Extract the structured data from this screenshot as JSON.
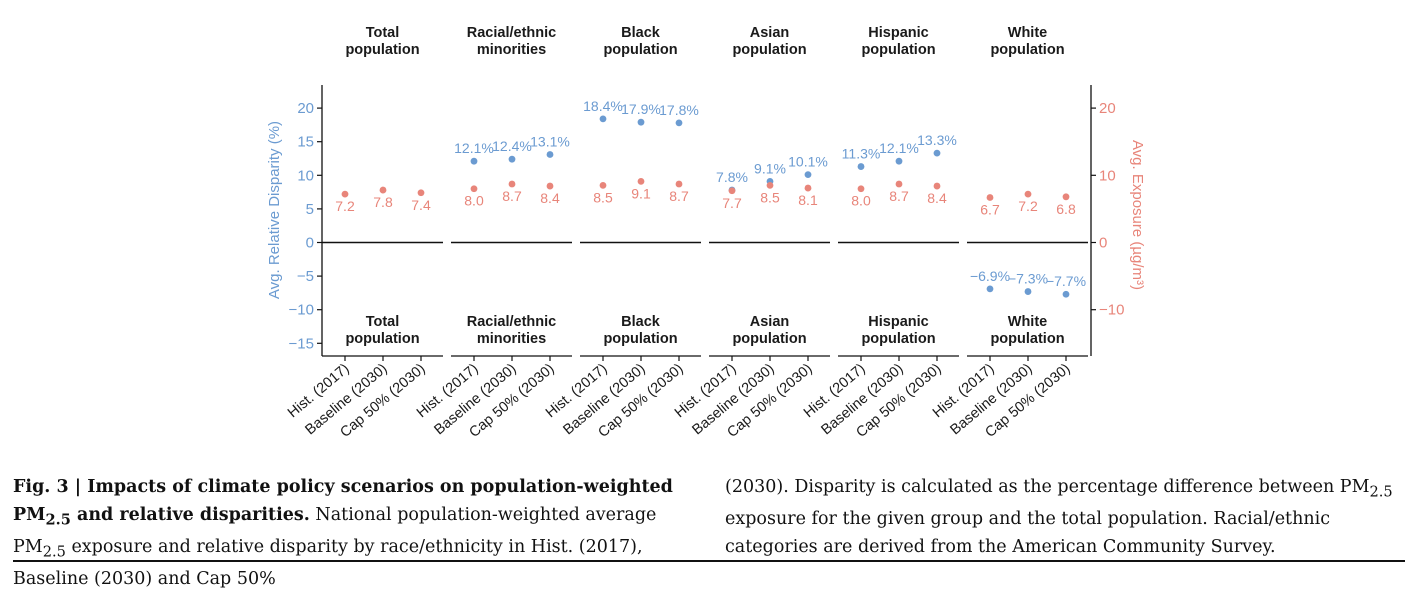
{
  "chart_data": {
    "type": "scatter",
    "panels": [
      "Total\npopulation",
      "Racial/ethnic\nminorities",
      "Black\npopulation",
      "Asian\npopulation",
      "Hispanic\npopulation",
      "White\npopulation"
    ],
    "categories": [
      "Hist. (2017)",
      "Baseline (2030)",
      "Cap 50% (2030)"
    ],
    "ylabel_left": "Avg. Relative Disparity (%)",
    "ylabel_right": "Avg. Exposure (µg/m³)",
    "yticks": [
      "20",
      "15",
      "10",
      "5",
      "0",
      "−5",
      "−10",
      "−15"
    ],
    "yticks_right": [
      "20",
      "10",
      "0",
      "−10"
    ],
    "ylim_left": [
      -17,
      23.5
    ],
    "ylim_right": [
      -17,
      23.5
    ],
    "series": [
      {
        "axis": "left",
        "color": "#6b9bd1",
        "values": [
          [
            null,
            null,
            null
          ],
          [
            12.1,
            12.4,
            13.1
          ],
          [
            18.4,
            17.9,
            17.8
          ],
          [
            7.8,
            9.1,
            10.1
          ],
          [
            11.3,
            12.1,
            13.3
          ],
          [
            -6.9,
            -7.3,
            -7.7
          ]
        ],
        "labels": [
          [
            "",
            "",
            ""
          ],
          [
            "12.1%",
            "12.4%",
            "13.1%"
          ],
          [
            "18.4%",
            "17.9%",
            "17.8%"
          ],
          [
            "7.8%",
            "9.1%",
            "10.1%"
          ],
          [
            "11.3%",
            "12.1%",
            "13.3%"
          ],
          [
            "−6.9%",
            "−7.3%",
            "−7.7%"
          ]
        ]
      },
      {
        "axis": "right",
        "color": "#e8857a",
        "values": [
          [
            7.2,
            7.8,
            7.4
          ],
          [
            8.0,
            8.7,
            8.4
          ],
          [
            8.5,
            9.1,
            8.7
          ],
          [
            7.7,
            8.5,
            8.1
          ],
          [
            8.0,
            8.7,
            8.4
          ],
          [
            6.7,
            7.2,
            6.8
          ]
        ],
        "labels": [
          [
            "7.2",
            "7.8",
            "7.4"
          ],
          [
            "8.0",
            "8.7",
            "8.4"
          ],
          [
            "8.5",
            "9.1",
            "8.7"
          ],
          [
            "7.7",
            "8.5",
            "8.1"
          ],
          [
            "8.0",
            "8.7",
            "8.4"
          ],
          [
            "6.7",
            "7.2",
            "6.8"
          ]
        ]
      }
    ],
    "grid": false
  },
  "caption": {
    "fig_label": "Fig. 3 | ",
    "title_pre": "Impacts of climate policy scenarios on population-weighted PM",
    "title_sub": "2.5",
    "title_post": " and relative disparities.",
    "text1_pre": " National population-weighted average PM",
    "text1_sub": "2.5",
    "text1_post": " exposure and relative disparity by race/ethnicity in Hist. (2017), Baseline (2030) and Cap 50%",
    "text2_pre": "(2030). Disparity is calculated as the percentage difference between PM",
    "text2_sub": "2.5",
    "text2_post": " exposure for the given group and the total population. Racial/ethnic categories are derived from the American Community Survey."
  }
}
